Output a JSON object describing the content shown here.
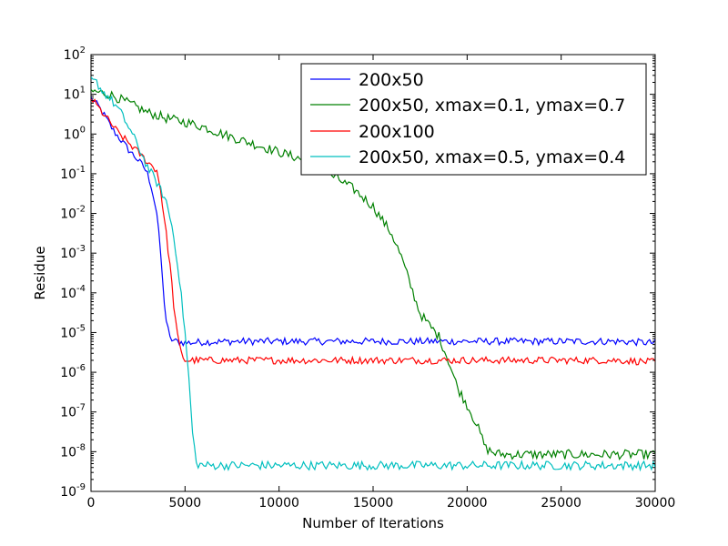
{
  "chart_data": {
    "type": "line",
    "xlabel": "Number of Iterations",
    "ylabel": "Residue",
    "xlim": [
      0,
      30000
    ],
    "ylim_log10": [
      -9,
      2
    ],
    "yscale": "log",
    "grid": false,
    "legend_position": "top-right",
    "x_ticks": [
      {
        "value": 0,
        "label": "0"
      },
      {
        "value": 5000,
        "label": "5000"
      },
      {
        "value": 10000,
        "label": "10000"
      },
      {
        "value": 15000,
        "label": "15000"
      },
      {
        "value": 20000,
        "label": "20000"
      },
      {
        "value": 25000,
        "label": "25000"
      },
      {
        "value": 30000,
        "label": "30000"
      }
    ],
    "y_ticks": [
      {
        "exp": 2,
        "base": "10",
        "sup": "2"
      },
      {
        "exp": 1,
        "base": "10",
        "sup": "1"
      },
      {
        "exp": 0,
        "base": "10",
        "sup": "0"
      },
      {
        "exp": -1,
        "base": "10",
        "sup": "-1"
      },
      {
        "exp": -2,
        "base": "10",
        "sup": "-2"
      },
      {
        "exp": -3,
        "base": "10",
        "sup": "-3"
      },
      {
        "exp": -4,
        "base": "10",
        "sup": "-4"
      },
      {
        "exp": -5,
        "base": "10",
        "sup": "-5"
      },
      {
        "exp": -6,
        "base": "10",
        "sup": "-6"
      },
      {
        "exp": -7,
        "base": "10",
        "sup": "-7"
      },
      {
        "exp": -8,
        "base": "10",
        "sup": "-8"
      },
      {
        "exp": -9,
        "base": "10",
        "sup": "-9"
      }
    ],
    "series": [
      {
        "name": "200x50",
        "color": "#0000ff",
        "noise": 0.09,
        "x": [
          0,
          400,
          800,
          1200,
          1600,
          2000,
          2400,
          2800,
          3000,
          3200,
          3500,
          3700,
          3850,
          4000,
          4200,
          4500,
          5000,
          6000,
          8000,
          10000,
          12000,
          14000,
          16000,
          18000,
          20000,
          22000,
          24000,
          26000,
          28000,
          30000
        ],
        "y": [
          8,
          5,
          2.5,
          1.2,
          0.7,
          0.4,
          0.25,
          0.15,
          0.1,
          0.05,
          0.01,
          0.001,
          0.0001,
          2e-05,
          7e-06,
          6e-06,
          5.5e-06,
          5.8e-06,
          6e-06,
          6e-06,
          6e-06,
          6e-06,
          6e-06,
          6e-06,
          6e-06,
          6e-06,
          6e-06,
          6e-06,
          6e-06,
          5.5e-06
        ]
      },
      {
        "name": "200x50, xmax=0.1, ymax=0.7",
        "color": "#008000",
        "noise": 0.12,
        "x": [
          0,
          500,
          1000,
          2000,
          3000,
          4000,
          5000,
          6000,
          7000,
          8000,
          9000,
          10000,
          11000,
          12000,
          13000,
          14000,
          15000,
          16000,
          16500,
          17000,
          17500,
          18000,
          18500,
          19000,
          19500,
          20000,
          20500,
          21000,
          21500,
          22000,
          24000,
          26000,
          28000,
          30000
        ],
        "y": [
          12,
          11,
          10,
          6,
          3.5,
          2.5,
          2,
          1.5,
          1,
          0.7,
          0.5,
          0.35,
          0.25,
          0.15,
          0.08,
          0.04,
          0.015,
          0.003,
          0.0008,
          0.00015,
          3e-05,
          1.5e-05,
          8e-06,
          2e-06,
          4e-07,
          1.5e-07,
          5e-08,
          1.2e-08,
          9e-09,
          8.5e-09,
          8.5e-09,
          8.5e-09,
          8.5e-09,
          8.5e-09
        ]
      },
      {
        "name": "200x100",
        "color": "#ff0000",
        "noise": 0.09,
        "x": [
          0,
          500,
          1000,
          1500,
          2000,
          2500,
          3000,
          3300,
          3500,
          3700,
          4000,
          4200,
          4400,
          4600,
          4800,
          5000,
          6000,
          8000,
          10000,
          12000,
          14000,
          16000,
          18000,
          20000,
          22000,
          24000,
          26000,
          28000,
          30000
        ],
        "y": [
          8,
          4,
          2,
          1,
          0.6,
          0.35,
          0.2,
          0.15,
          0.12,
          0.04,
          0.003,
          0.0005,
          5e-05,
          8e-06,
          3e-06,
          2e-06,
          2e-06,
          2e-06,
          2e-06,
          2e-06,
          2e-06,
          2e-06,
          2e-06,
          2e-06,
          2e-06,
          2e-06,
          2e-06,
          2e-06,
          1.8e-06
        ]
      },
      {
        "name": "200x50, xmax=0.5, ymax=0.4",
        "color": "#00bfbf",
        "noise": 0.11,
        "x": [
          0,
          300,
          600,
          1000,
          1500,
          2000,
          2500,
          3000,
          3500,
          4000,
          4300,
          4600,
          4800,
          5000,
          5200,
          5400,
          5600,
          6000,
          8000,
          10000,
          12000,
          14000,
          16000,
          18000,
          20000,
          22000,
          24000,
          26000,
          28000,
          30000
        ],
        "y": [
          22,
          20,
          12,
          8,
          4,
          1.5,
          0.5,
          0.15,
          0.06,
          0.02,
          0.005,
          0.0006,
          8e-05,
          1e-05,
          7e-07,
          3e-08,
          5e-09,
          4.5e-09,
          4.5e-09,
          4.5e-09,
          4.5e-09,
          4.5e-09,
          4.5e-09,
          4.5e-09,
          4.5e-09,
          4.5e-09,
          4.5e-09,
          4.5e-09,
          4.5e-09,
          4.5e-09
        ]
      }
    ]
  }
}
